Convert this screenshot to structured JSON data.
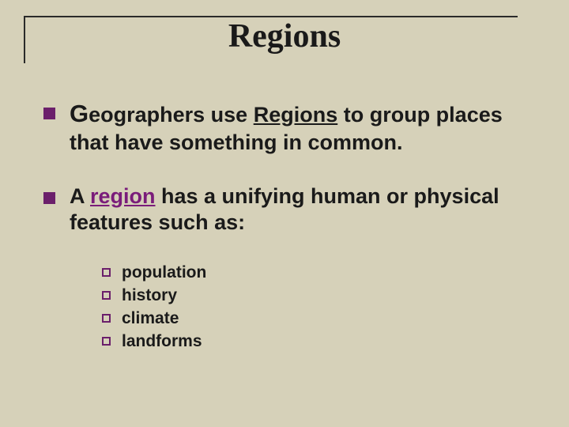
{
  "slide": {
    "title": "Regions",
    "background_color": "#d6d1b9",
    "title_fontsize": 42,
    "title_fontfamily": "Times New Roman",
    "accent_color": "#6b1f6b",
    "frame_color": "#2a2a2a",
    "bullets": [
      {
        "prefix_big": "G",
        "before": "eographers use ",
        "underlined": "Regions",
        "after": " to group places that have something in common."
      },
      {
        "before": "A ",
        "purple_underlined": "region",
        "after": " has a unifying human or physical features such as:"
      }
    ],
    "sublist": [
      "population",
      "history",
      "climate",
      "landforms"
    ],
    "body_fontsize": 27,
    "sub_fontsize": 21
  }
}
